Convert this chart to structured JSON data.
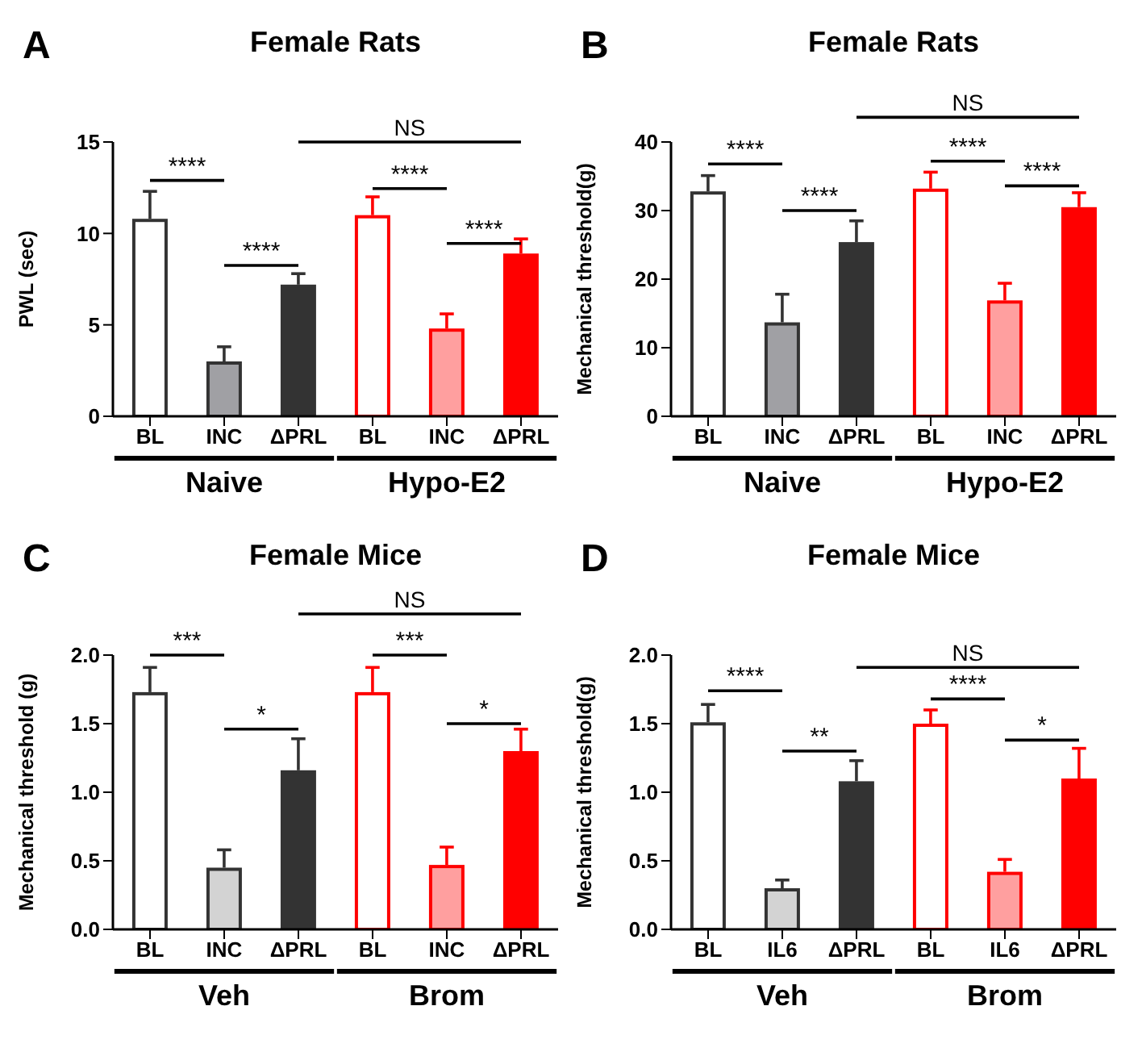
{
  "chart_data": [
    {
      "type": "bar",
      "title": "Female Rats",
      "ylabel": "PWL (sec)",
      "categories": [
        "BL",
        "INC",
        "ΔPRL",
        "BL",
        "INC",
        "ΔPRL"
      ],
      "values": [
        10.8,
        3.0,
        7.2,
        11.0,
        4.8,
        8.9
      ],
      "colors": [
        "#ffffff",
        "#a0a0a4",
        "#333333",
        "#ffffff",
        "#ff9f9f",
        "#ff0000"
      ],
      "errors": [
        [
          10.8,
          12.3
        ],
        [
          3.0,
          3.8
        ],
        [
          7.2,
          7.8
        ],
        [
          11.0,
          12.0
        ],
        [
          4.8,
          5.6
        ],
        [
          8.9,
          9.7
        ]
      ],
      "ylim": [
        0,
        15
      ],
      "yticks": [
        0,
        5,
        10,
        15
      ],
      "annotations": [
        "A",
        "****",
        "****",
        "NS",
        "****",
        "****",
        "Naive",
        "Hypo-E2"
      ]
    },
    {
      "type": "bar",
      "title": "Female Rats",
      "ylabel": "Mechanical threshold(g)",
      "categories": [
        "BL",
        "INC",
        "ΔPRL",
        "BL",
        "INC",
        "ΔPRL"
      ],
      "values": [
        32.8,
        13.7,
        25.4,
        33.2,
        16.9,
        30.5
      ],
      "colors": [
        "#ffffff",
        "#a0a0a4",
        "#333333",
        "#ffffff",
        "#ff9f9f",
        "#ff0000"
      ],
      "errors": [
        [
          32.8,
          35.1
        ],
        [
          13.7,
          17.8
        ],
        [
          25.4,
          28.5
        ],
        [
          33.2,
          35.6
        ],
        [
          16.9,
          19.4
        ],
        [
          30.5,
          32.6
        ]
      ],
      "ylim": [
        0,
        40
      ],
      "yticks": [
        0,
        10,
        20,
        30,
        40
      ],
      "annotations": [
        "B",
        "****",
        "****",
        "NS",
        "****",
        "****",
        "Naive",
        "Hypo-E2"
      ]
    },
    {
      "type": "bar",
      "title": "Female Mice",
      "ylabel": "Mechanical threshold (g)",
      "categories": [
        "BL",
        "INC",
        "ΔPRL",
        "BL",
        "INC",
        "ΔPRL"
      ],
      "values": [
        1.73,
        0.45,
        1.16,
        1.73,
        0.47,
        1.3
      ],
      "colors": [
        "#ffffff",
        "#d3d3d3",
        "#333333",
        "#ffffff",
        "#ff9f9f",
        "#ff0000"
      ],
      "errors": [
        [
          1.73,
          1.91
        ],
        [
          0.45,
          0.58
        ],
        [
          1.16,
          1.39
        ],
        [
          1.73,
          1.91
        ],
        [
          0.47,
          0.6
        ],
        [
          1.3,
          1.46
        ]
      ],
      "ylim": [
        0,
        2
      ],
      "yticks": [
        {
          "value": 0,
          "label": "0.0"
        },
        0.5,
        {
          "value": 1,
          "label": "1.0"
        },
        1.5,
        {
          "value": 2,
          "label": "2.0"
        }
      ],
      "annotations": [
        "C",
        "***",
        "*",
        "NS",
        "***",
        "*",
        "Veh",
        "Brom"
      ]
    },
    {
      "type": "bar",
      "title": "Female Mice",
      "ylabel": "Mechanical threshold(g)",
      "categories": [
        "BL",
        "IL6",
        "ΔPRL",
        "BL",
        "IL6",
        "ΔPRL"
      ],
      "values": [
        1.51,
        0.3,
        1.08,
        1.5,
        0.42,
        1.1
      ],
      "colors": [
        "#ffffff",
        "#d3d3d3",
        "#333333",
        "#ffffff",
        "#ff9f9f",
        "#ff0000"
      ],
      "errors": [
        [
          1.51,
          1.64
        ],
        [
          0.3,
          0.36
        ],
        [
          1.08,
          1.23
        ],
        [
          1.5,
          1.6
        ],
        [
          0.42,
          0.51
        ],
        [
          1.1,
          1.32
        ]
      ],
      "ylim": [
        0,
        2
      ],
      "yticks": [
        {
          "value": 0,
          "label": "0.0"
        },
        0.5,
        {
          "value": 1,
          "label": "1.0"
        },
        1.5,
        {
          "value": 2,
          "label": "2.0"
        }
      ],
      "annotations": [
        "D",
        "****",
        "**",
        "NS",
        "****",
        "*",
        "Veh",
        "Brom"
      ]
    }
  ]
}
